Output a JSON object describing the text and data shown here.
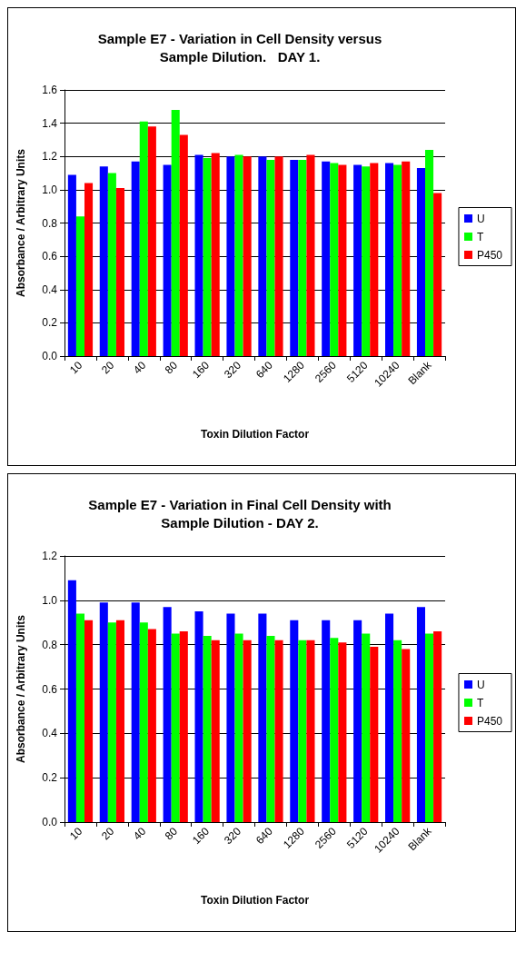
{
  "chart_data": [
    {
      "type": "bar",
      "title": "Sample E7 - Variation in Cell Density versus\nSample Dilution.   DAY 1.",
      "xlabel": "Toxin Dilution Factor",
      "ylabel": "Absorbance / Arbitrary Units",
      "categories": [
        "10",
        "20",
        "40",
        "80",
        "160",
        "320",
        "640",
        "1280",
        "2560",
        "5120",
        "10240",
        "Blank"
      ],
      "series": [
        {
          "name": "U",
          "color": "#0000ff",
          "values": [
            1.09,
            1.14,
            1.17,
            1.15,
            1.21,
            1.2,
            1.2,
            1.18,
            1.17,
            1.15,
            1.16,
            1.13
          ]
        },
        {
          "name": "T",
          "color": "#00ff00",
          "values": [
            0.84,
            1.1,
            1.41,
            1.48,
            1.19,
            1.21,
            1.18,
            1.18,
            1.16,
            1.14,
            1.15,
            1.24
          ]
        },
        {
          "name": "P450",
          "color": "#ff0000",
          "values": [
            1.04,
            1.01,
            1.38,
            1.33,
            1.22,
            1.2,
            1.2,
            1.21,
            1.15,
            1.16,
            1.17,
            0.98
          ]
        }
      ],
      "ylim": [
        0,
        1.6
      ],
      "yticks": [
        {
          "value": 0,
          "label": "0.0"
        },
        {
          "value": 0.2,
          "label": "0.2"
        },
        {
          "value": 0.4,
          "label": "0.4"
        },
        {
          "value": 0.6,
          "label": "0.6"
        },
        {
          "value": 0.8,
          "label": "0.8"
        },
        {
          "value": 1,
          "label": "1.0"
        },
        {
          "value": 1.2,
          "label": "1.2"
        },
        {
          "value": 1.4,
          "label": "1.4"
        },
        {
          "value": 1.6,
          "label": "1.6"
        }
      ],
      "grid": "y",
      "legend": "right"
    },
    {
      "type": "bar",
      "title": "Sample E7 - Variation in Final Cell Density with\nSample Dilution - DAY 2.",
      "xlabel": "Toxin Dilution Factor",
      "ylabel": "Absorbance / Arbitrary Units",
      "categories": [
        "10",
        "20",
        "40",
        "80",
        "160",
        "320",
        "640",
        "1280",
        "2560",
        "5120",
        "10240",
        "Blank"
      ],
      "series": [
        {
          "name": "U",
          "color": "#0000ff",
          "values": [
            1.09,
            0.99,
            0.99,
            0.97,
            0.95,
            0.94,
            0.94,
            0.91,
            0.91,
            0.91,
            0.94,
            0.97
          ]
        },
        {
          "name": "T",
          "color": "#00ff00",
          "values": [
            0.94,
            0.9,
            0.9,
            0.85,
            0.84,
            0.85,
            0.84,
            0.82,
            0.83,
            0.85,
            0.82,
            0.85
          ]
        },
        {
          "name": "P450",
          "color": "#ff0000",
          "values": [
            0.91,
            0.91,
            0.87,
            0.86,
            0.82,
            0.82,
            0.82,
            0.82,
            0.81,
            0.79,
            0.78,
            0.86
          ]
        }
      ],
      "ylim": [
        0,
        1.2
      ],
      "yticks": [
        {
          "value": 0,
          "label": "0.0"
        },
        {
          "value": 0.2,
          "label": "0.2"
        },
        {
          "value": 0.4,
          "label": "0.4"
        },
        {
          "value": 0.6,
          "label": "0.6"
        },
        {
          "value": 0.8,
          "label": "0.8"
        },
        {
          "value": 1,
          "label": "1.0"
        },
        {
          "value": 1.2,
          "label": "1.2"
        }
      ],
      "grid": "y",
      "legend": "right"
    }
  ]
}
